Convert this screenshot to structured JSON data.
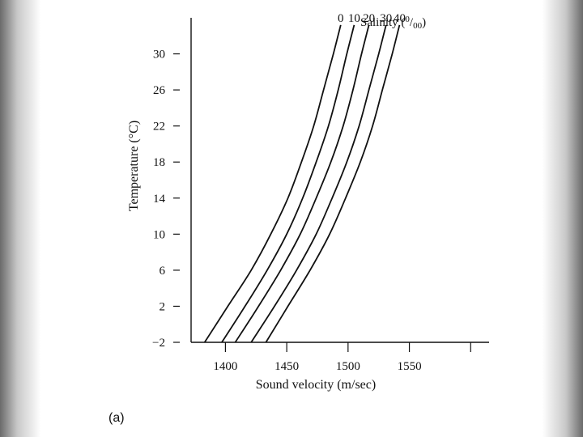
{
  "panel_label": "(a)",
  "chart_data": {
    "type": "line",
    "xlabel": "Sound velocity (m/sec)",
    "ylabel": "Temperature (°C)",
    "xlim": [
      1372,
      1615
    ],
    "ylim": [
      -2,
      34
    ],
    "x_ticks": [
      1400,
      1450,
      1500,
      1550,
      1600
    ],
    "x_tick_labels": [
      "1400",
      "1450",
      "1500",
      "1550",
      ""
    ],
    "y_ticks": [
      -2,
      2,
      6,
      10,
      14,
      18,
      22,
      26,
      30
    ],
    "y_tick_labels": [
      "−2",
      "2",
      "6",
      "10",
      "14",
      "18",
      "22",
      "26",
      "30"
    ],
    "legend_title_prefix": "Salinity (",
    "legend_unit_sup": "0",
    "legend_unit_slash": "/",
    "legend_unit_sub": "00",
    "legend_title_suffix": ")",
    "line_color": "#111111",
    "series": [
      {
        "name": "0",
        "points": [
          [
            1383,
            -2
          ],
          [
            1402,
            2
          ],
          [
            1421,
            6
          ],
          [
            1437,
            10
          ],
          [
            1451,
            14
          ],
          [
            1462,
            18
          ],
          [
            1472,
            22
          ],
          [
            1480,
            26
          ],
          [
            1488,
            30
          ],
          [
            1494,
            33.2
          ]
        ]
      },
      {
        "name": "10",
        "points": [
          [
            1397,
            -2
          ],
          [
            1416,
            2
          ],
          [
            1434,
            6
          ],
          [
            1450,
            10
          ],
          [
            1463,
            14
          ],
          [
            1474,
            18
          ],
          [
            1484,
            22
          ],
          [
            1492,
            26
          ],
          [
            1499,
            30
          ],
          [
            1505,
            33.2
          ]
        ]
      },
      {
        "name": "20",
        "points": [
          [
            1408,
            -2
          ],
          [
            1427,
            2
          ],
          [
            1445,
            6
          ],
          [
            1461,
            10
          ],
          [
            1474,
            14
          ],
          [
            1486,
            18
          ],
          [
            1496,
            22
          ],
          [
            1504,
            26
          ],
          [
            1511,
            30
          ],
          [
            1517,
            33.2
          ]
        ]
      },
      {
        "name": "30",
        "points": [
          [
            1421,
            -2
          ],
          [
            1440,
            2
          ],
          [
            1458,
            6
          ],
          [
            1474,
            10
          ],
          [
            1487,
            14
          ],
          [
            1499,
            18
          ],
          [
            1509,
            22
          ],
          [
            1517,
            26
          ],
          [
            1525,
            30
          ],
          [
            1531,
            33.2
          ]
        ]
      },
      {
        "name": "40",
        "points": [
          [
            1433,
            -2
          ],
          [
            1451,
            2
          ],
          [
            1469,
            6
          ],
          [
            1485,
            10
          ],
          [
            1498,
            14
          ],
          [
            1510,
            18
          ],
          [
            1520,
            22
          ],
          [
            1528,
            26
          ],
          [
            1536,
            30
          ],
          [
            1542,
            33.2
          ]
        ]
      }
    ]
  }
}
